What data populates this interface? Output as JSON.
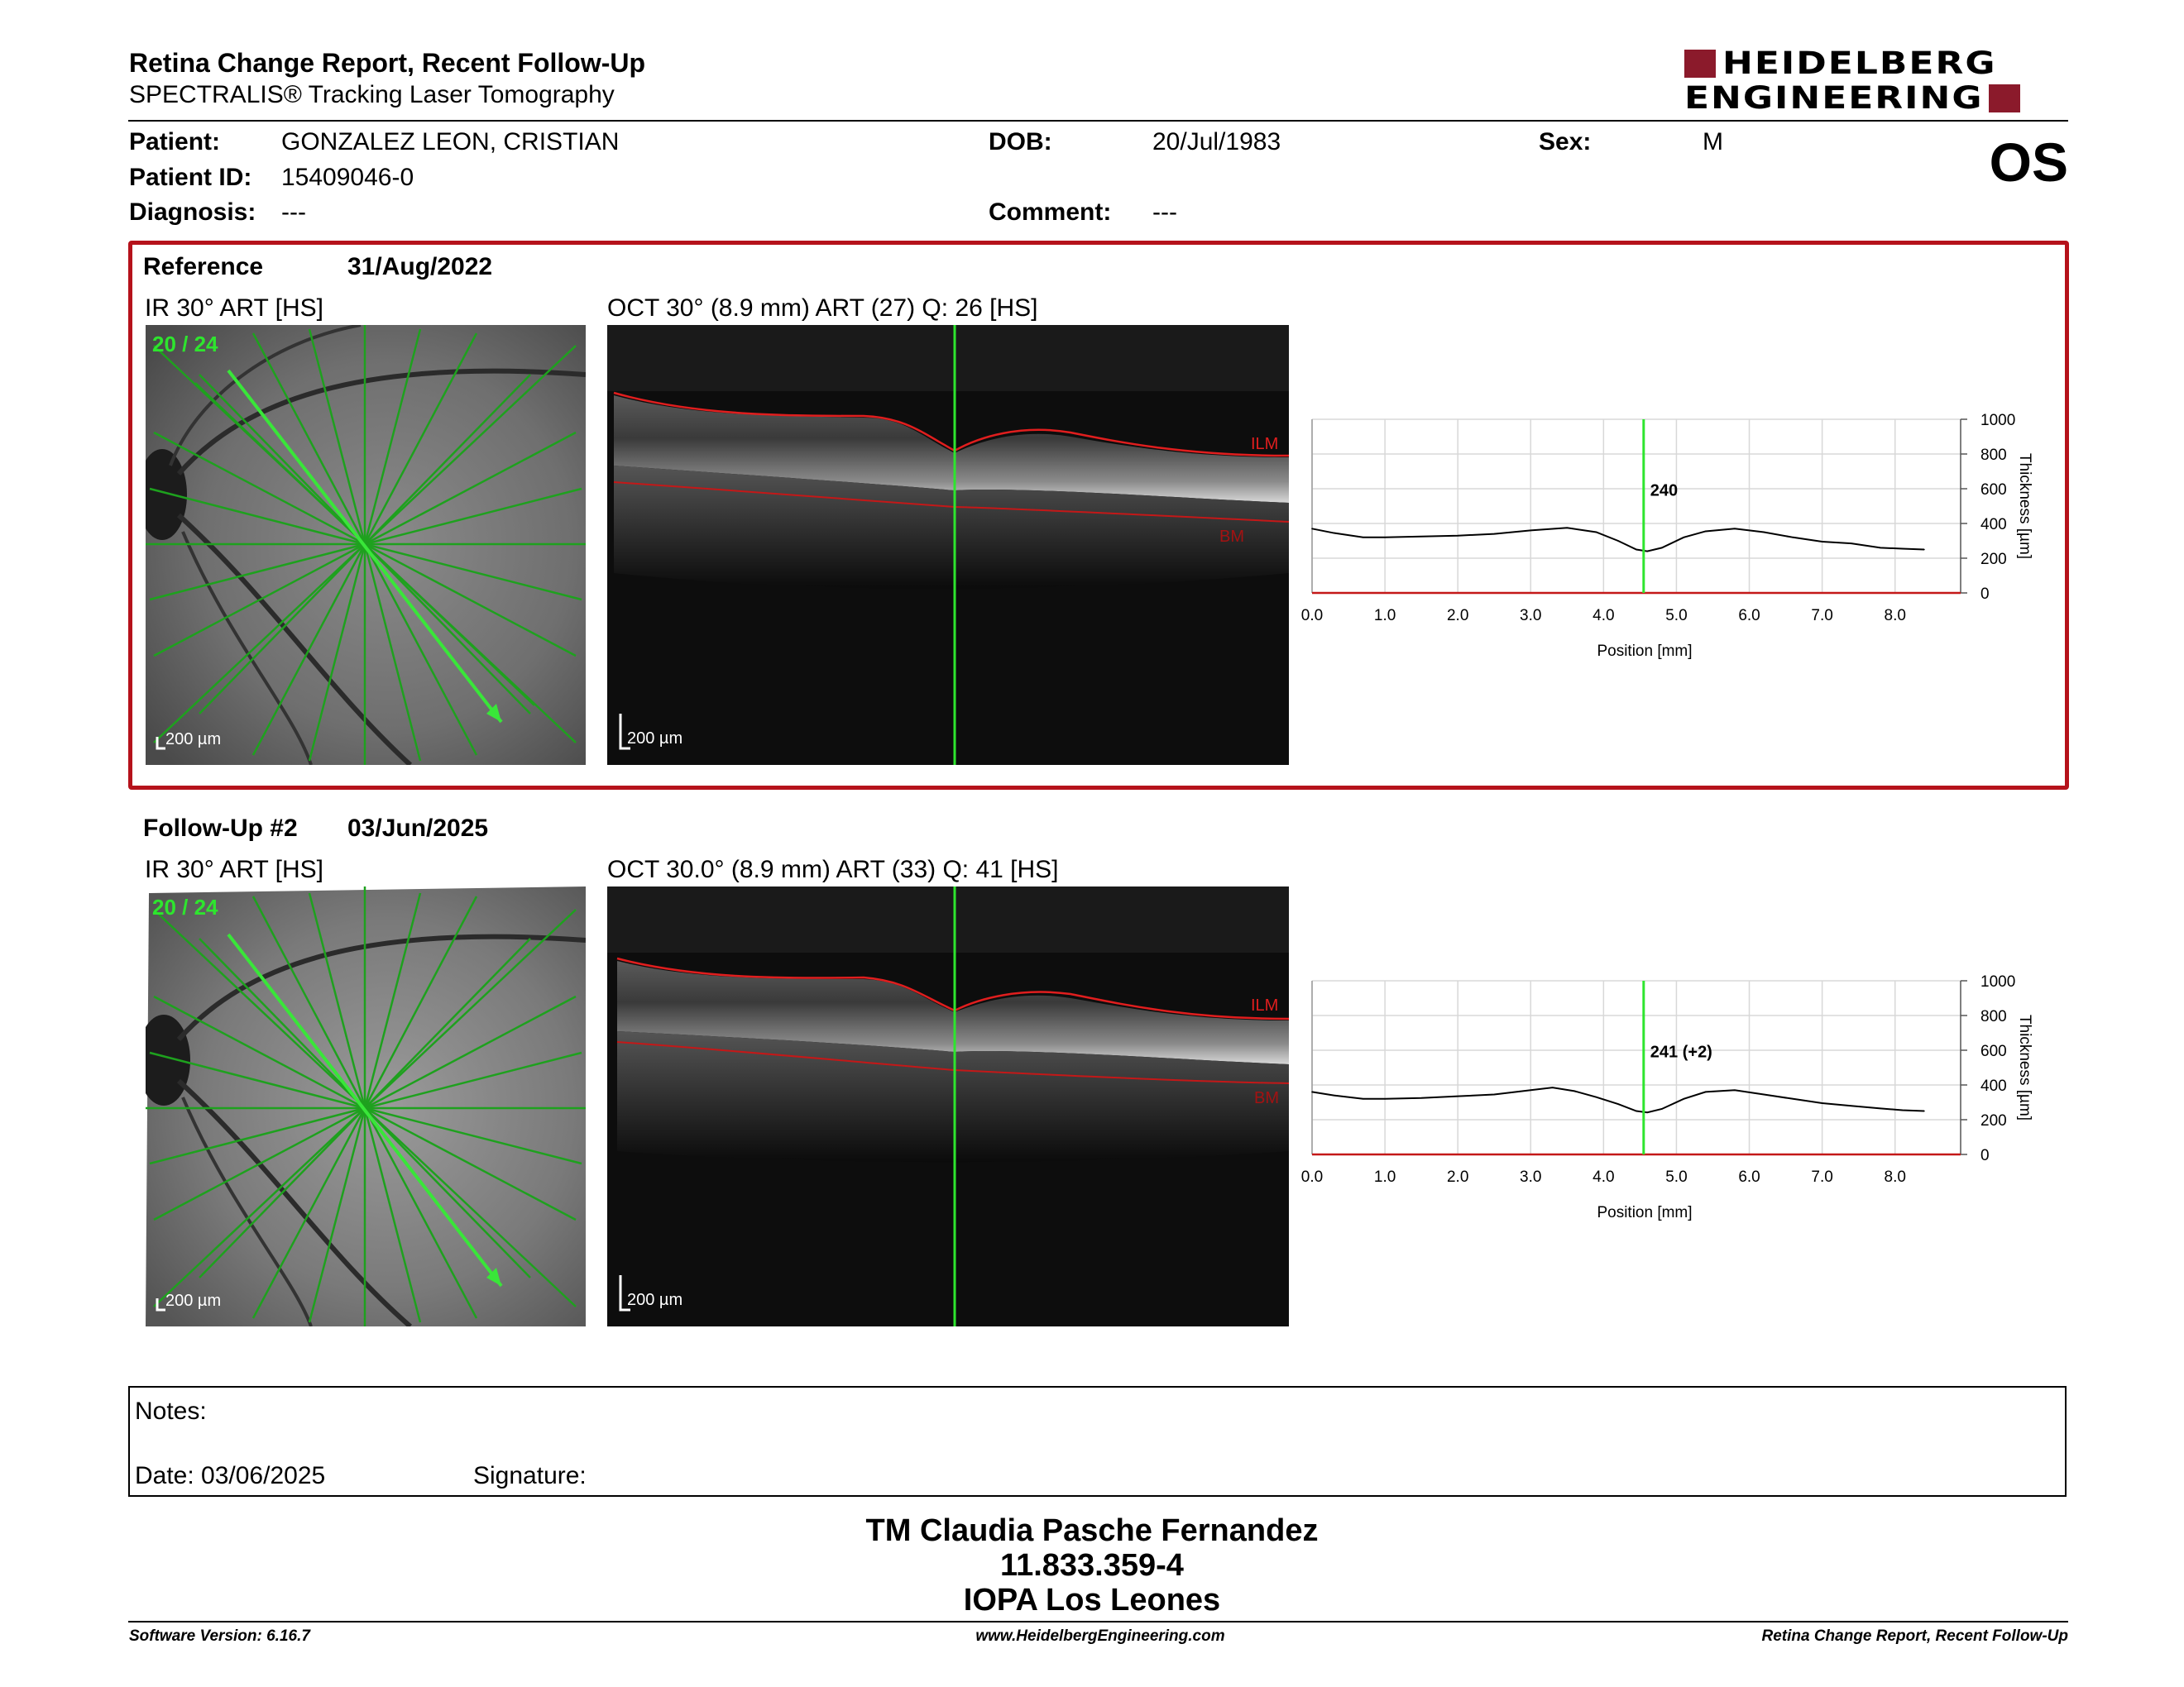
{
  "header": {
    "title": "Retina Change Report, Recent Follow-Up",
    "subtitle": "SPECTRALIS® Tracking Laser Tomography",
    "logo_line1": "HEIDELBERG",
    "logo_line2": "ENGINEERING",
    "brand_color": "#8b1a2b"
  },
  "patient": {
    "patient_label": "Patient:",
    "patient_value": "GONZALEZ LEON, CRISTIAN",
    "id_label": "Patient ID:",
    "id_value": "15409046-0",
    "diagnosis_label": "Diagnosis:",
    "diagnosis_value": "---",
    "dob_label": "DOB:",
    "dob_value": "20/Jul/1983",
    "comment_label": "Comment:",
    "comment_value": "---",
    "sex_label": "Sex:",
    "sex_value": "M",
    "eye": "OS"
  },
  "reference": {
    "label": "Reference",
    "date": "31/Aug/2022",
    "ir_label": "IR 30° ART [HS]",
    "oct_label": "OCT 30° (8.9 mm) ART (27) Q: 26 [HS]",
    "scan_counter": "20 / 24",
    "scale_ir": "200 µm",
    "scale_oct": "200 µm",
    "ilm_label": "ILM",
    "bm_label": "BM",
    "thickness_value_label": "240"
  },
  "followup": {
    "label": "Follow-Up #2",
    "date": "03/Jun/2025",
    "ir_label": "IR 30° ART [HS]",
    "oct_label": "OCT 30.0° (8.9 mm) ART (33) Q: 41 [HS]",
    "scan_counter": "20 / 24",
    "scale_ir": "200 µm",
    "scale_oct": "200 µm",
    "ilm_label": "ILM",
    "bm_label": "BM",
    "thickness_value_label": "241 (+2)"
  },
  "chart_data": [
    {
      "type": "line",
      "xlabel": "Position [mm]",
      "ylabel": "Thickness [µm]",
      "xlim": [
        0,
        8.9
      ],
      "ylim": [
        0,
        1000
      ],
      "x_ticks": [
        "0.0",
        "1.0",
        "2.0",
        "3.0",
        "4.0",
        "5.0",
        "6.0",
        "7.0",
        "8.0"
      ],
      "y_ticks": [
        "0",
        "200",
        "400",
        "600",
        "800",
        "1000"
      ],
      "cursor_x": 4.55,
      "cursor_label": "240",
      "x": [
        0.0,
        0.3,
        0.7,
        1.0,
        1.5,
        2.0,
        2.5,
        3.0,
        3.5,
        3.9,
        4.2,
        4.45,
        4.6,
        4.8,
        5.1,
        5.4,
        5.8,
        6.2,
        6.6,
        7.0,
        7.4,
        7.8,
        8.1,
        8.4
      ],
      "y": [
        370,
        345,
        320,
        320,
        325,
        330,
        340,
        360,
        375,
        350,
        300,
        250,
        240,
        260,
        320,
        355,
        370,
        350,
        320,
        295,
        285,
        260,
        255,
        250
      ]
    },
    {
      "type": "line",
      "xlabel": "Position [mm]",
      "ylabel": "Thickness [µm]",
      "xlim": [
        0,
        8.9
      ],
      "ylim": [
        0,
        1000
      ],
      "x_ticks": [
        "0.0",
        "1.0",
        "2.0",
        "3.0",
        "4.0",
        "5.0",
        "6.0",
        "7.0",
        "8.0"
      ],
      "y_ticks": [
        "0",
        "200",
        "400",
        "600",
        "800",
        "1000"
      ],
      "cursor_x": 4.55,
      "cursor_label": "241 (+2)",
      "x": [
        0.0,
        0.3,
        0.7,
        1.0,
        1.5,
        2.0,
        2.5,
        3.0,
        3.3,
        3.6,
        3.9,
        4.2,
        4.45,
        4.6,
        4.8,
        5.1,
        5.4,
        5.8,
        6.2,
        6.6,
        7.0,
        7.4,
        7.8,
        8.1,
        8.4
      ],
      "y": [
        360,
        340,
        320,
        320,
        325,
        335,
        345,
        370,
        385,
        365,
        330,
        290,
        250,
        242,
        262,
        320,
        360,
        370,
        345,
        320,
        295,
        280,
        265,
        255,
        250
      ]
    }
  ],
  "notes": {
    "notes_label": "Notes:",
    "date_label": "Date: 03/06/2025",
    "signature_label": "Signature:"
  },
  "footer": {
    "line1": "TM Claudia Pasche Fernandez",
    "line2": "11.833.359-4",
    "line3": "IOPA Los Leones",
    "software": "Software Version: 6.16.7",
    "website": "www.HeidelbergEngineering.com",
    "report_name": "Retina Change Report, Recent Follow-Up"
  }
}
